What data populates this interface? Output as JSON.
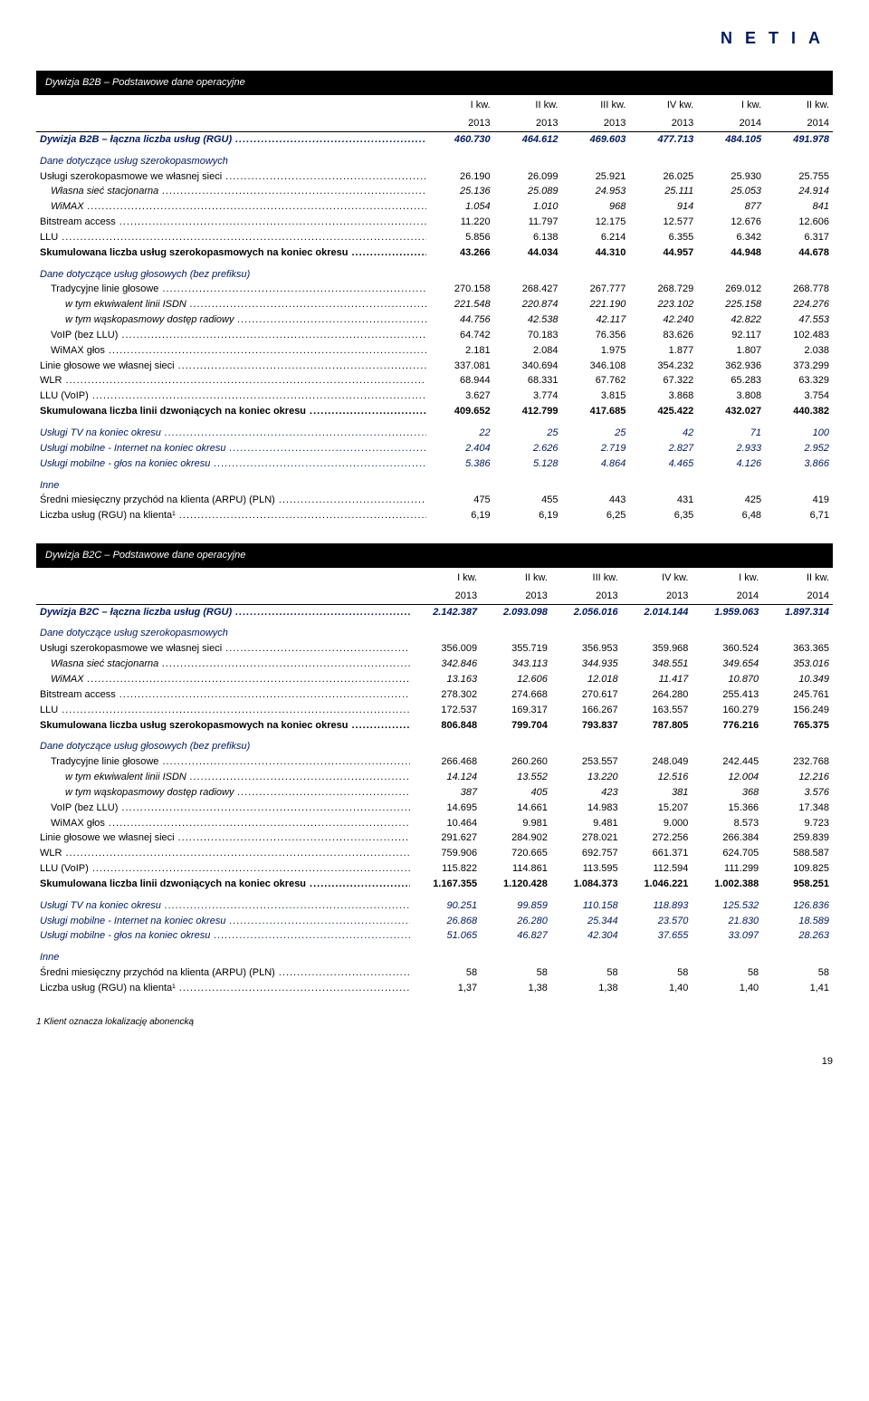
{
  "brand": "NETIA",
  "table_b2b": {
    "title": "Dywizja B2B – Podstawowe dane operacyjne",
    "col_top": [
      "I kw.",
      "II kw.",
      "III kw.",
      "IV kw.",
      "I kw.",
      "II kw."
    ],
    "col_year": [
      "2013",
      "2013",
      "2013",
      "2013",
      "2014",
      "2014"
    ],
    "rows": [
      {
        "label": "Dywizja B2B – łączna liczba usług (RGU)",
        "vals": [
          "460.730",
          "464.612",
          "469.603",
          "477.713",
          "484.105",
          "491.978"
        ],
        "cls": "blue-i bold rule-top"
      },
      {
        "label": "Dane dotyczące usług szerokopasmowych",
        "vals": [
          "",
          "",
          "",
          "",
          "",
          ""
        ],
        "cls": "blue-i section-gap",
        "nodots": true
      },
      {
        "label": "Usługi szerokopasmowe we własnej sieci",
        "vals": [
          "26.190",
          "26.099",
          "25.921",
          "26.025",
          "25.930",
          "25.755"
        ]
      },
      {
        "label": "Własna sieć stacjonarna",
        "vals": [
          "25.136",
          "25.089",
          "24.953",
          "25.111",
          "25.053",
          "24.914"
        ],
        "cls": "italic ind1"
      },
      {
        "label": "WiMAX",
        "vals": [
          "1.054",
          "1.010",
          "968",
          "914",
          "877",
          "841"
        ],
        "cls": "italic ind1"
      },
      {
        "label": "Bitstream access",
        "vals": [
          "11.220",
          "11.797",
          "12.175",
          "12.577",
          "12.676",
          "12.606"
        ]
      },
      {
        "label": "LLU",
        "vals": [
          "5.856",
          "6.138",
          "6.214",
          "6.355",
          "6.342",
          "6.317"
        ]
      },
      {
        "label": "Skumulowana liczba usług szerokopasmowych na koniec okresu",
        "vals": [
          "43.266",
          "44.034",
          "44.310",
          "44.957",
          "44.948",
          "44.678"
        ],
        "cls": "bold"
      },
      {
        "label": "Dane dotyczące usług głosowych (bez prefiksu)",
        "vals": [
          "",
          "",
          "",
          "",
          "",
          ""
        ],
        "cls": "blue-i section-gap",
        "nodots": true
      },
      {
        "label": "Tradycyjne linie głosowe",
        "vals": [
          "270.158",
          "268.427",
          "267.777",
          "268.729",
          "269.012",
          "268.778"
        ],
        "cls": "ind1"
      },
      {
        "label": "w tym ekwiwalent linii ISDN",
        "vals": [
          "221.548",
          "220.874",
          "221.190",
          "223.102",
          "225.158",
          "224.276"
        ],
        "cls": "italic ind2"
      },
      {
        "label": "w tym wąskopasmowy dostęp radiowy",
        "vals": [
          "44.756",
          "42.538",
          "42.117",
          "42.240",
          "42.822",
          "47.553"
        ],
        "cls": "italic ind2"
      },
      {
        "label": "VoIP (bez LLU)",
        "vals": [
          "64.742",
          "70.183",
          "76.356",
          "83.626",
          "92.117",
          "102.483"
        ],
        "cls": "ind1"
      },
      {
        "label": "WiMAX głos",
        "vals": [
          "2.181",
          "2.084",
          "1.975",
          "1.877",
          "1.807",
          "2.038"
        ],
        "cls": "ind1"
      },
      {
        "label": "Linie głosowe we własnej sieci",
        "vals": [
          "337.081",
          "340.694",
          "346.108",
          "354.232",
          "362.936",
          "373.299"
        ]
      },
      {
        "label": "WLR",
        "vals": [
          "68.944",
          "68.331",
          "67.762",
          "67.322",
          "65.283",
          "63.329"
        ]
      },
      {
        "label": "LLU (VoIP)",
        "vals": [
          "3.627",
          "3.774",
          "3.815",
          "3.868",
          "3.808",
          "3.754"
        ]
      },
      {
        "label": "Skumulowana liczba linii dzwoniących na koniec okresu",
        "vals": [
          "409.652",
          "412.799",
          "417.685",
          "425.422",
          "432.027",
          "440.382"
        ],
        "cls": "bold"
      },
      {
        "label": "Usługi TV na koniec okresu",
        "vals": [
          "22",
          "25",
          "25",
          "42",
          "71",
          "100"
        ],
        "cls": "blue-i section-gap"
      },
      {
        "label": "Usługi mobilne - Internet na koniec okresu",
        "vals": [
          "2.404",
          "2.626",
          "2.719",
          "2.827",
          "2.933",
          "2.952"
        ],
        "cls": "blue-i"
      },
      {
        "label": "Usługi mobilne - głos na koniec okresu",
        "vals": [
          "5.386",
          "5.128",
          "4.864",
          "4.465",
          "4.126",
          "3.866"
        ],
        "cls": "blue-i"
      },
      {
        "label": "Inne",
        "vals": [
          "",
          "",
          "",
          "",
          "",
          ""
        ],
        "cls": "blue-i section-gap",
        "nodots": true
      },
      {
        "label": "Średni miesięczny przychód na klienta (ARPU) (PLN)",
        "vals": [
          "475",
          "455",
          "443",
          "431",
          "425",
          "419"
        ]
      },
      {
        "label": "Liczba usług (RGU) na klienta¹",
        "vals": [
          "6,19",
          "6,19",
          "6,25",
          "6,35",
          "6,48",
          "6,71"
        ]
      }
    ]
  },
  "table_b2c": {
    "title": "Dywizja B2C – Podstawowe dane operacyjne",
    "col_top": [
      "I kw.",
      "II kw.",
      "III kw.",
      "IV kw.",
      "I kw.",
      "II kw."
    ],
    "col_year": [
      "2013",
      "2013",
      "2013",
      "2013",
      "2014",
      "2014"
    ],
    "rows": [
      {
        "label": "Dywizja B2C – łączna liczba usług (RGU)",
        "vals": [
          "2.142.387",
          "2.093.098",
          "2.056.016",
          "2.014.144",
          "1.959.063",
          "1.897.314"
        ],
        "cls": "blue-i bold rule-top"
      },
      {
        "label": "Dane dotyczące usług szerokopasmowych",
        "vals": [
          "",
          "",
          "",
          "",
          "",
          ""
        ],
        "cls": "blue-i section-gap",
        "nodots": true
      },
      {
        "label": "Usługi szerokopasmowe we własnej sieci",
        "vals": [
          "356.009",
          "355.719",
          "356.953",
          "359.968",
          "360.524",
          "363.365"
        ]
      },
      {
        "label": "Własna sieć stacjonarna",
        "vals": [
          "342.846",
          "343.113",
          "344.935",
          "348.551",
          "349.654",
          "353.016"
        ],
        "cls": "italic ind1"
      },
      {
        "label": "WiMAX",
        "vals": [
          "13.163",
          "12.606",
          "12.018",
          "11.417",
          "10.870",
          "10.349"
        ],
        "cls": "italic ind1"
      },
      {
        "label": "Bitstream access",
        "vals": [
          "278.302",
          "274.668",
          "270.617",
          "264.280",
          "255.413",
          "245.761"
        ]
      },
      {
        "label": "LLU",
        "vals": [
          "172.537",
          "169.317",
          "166.267",
          "163.557",
          "160.279",
          "156.249"
        ]
      },
      {
        "label": "Skumulowana liczba usług szerokopasmowych  na koniec okresu",
        "vals": [
          "806.848",
          "799.704",
          "793.837",
          "787.805",
          "776.216",
          "765.375"
        ],
        "cls": "bold"
      },
      {
        "label": "Dane dotyczące usług głosowych (bez prefiksu)",
        "vals": [
          "",
          "",
          "",
          "",
          "",
          ""
        ],
        "cls": "blue-i section-gap",
        "nodots": true
      },
      {
        "label": "Tradycyjne linie głosowe",
        "vals": [
          "266.468",
          "260.260",
          "253.557",
          "248.049",
          "242.445",
          "232.768"
        ],
        "cls": "ind1"
      },
      {
        "label": "w tym ekwiwalent linii ISDN",
        "vals": [
          "14.124",
          "13.552",
          "13.220",
          "12.516",
          "12.004",
          "12.216"
        ],
        "cls": "italic ind2"
      },
      {
        "label": "w tym wąskopasmowy dostęp radiowy",
        "vals": [
          "387",
          "405",
          "423",
          "381",
          "368",
          "3.576"
        ],
        "cls": "italic ind2"
      },
      {
        "label": "VoIP (bez LLU)",
        "vals": [
          "14.695",
          "14.661",
          "14.983",
          "15.207",
          "15.366",
          "17.348"
        ],
        "cls": "ind1"
      },
      {
        "label": "WiMAX głos",
        "vals": [
          "10.464",
          "9.981",
          "9.481",
          "9.000",
          "8.573",
          "9.723"
        ],
        "cls": "ind1"
      },
      {
        "label": "Linie głosowe we własnej sieci",
        "vals": [
          "291.627",
          "284.902",
          "278.021",
          "272.256",
          "266.384",
          "259.839"
        ]
      },
      {
        "label": "WLR",
        "vals": [
          "759.906",
          "720.665",
          "692.757",
          "661.371",
          "624.705",
          "588.587"
        ]
      },
      {
        "label": "LLU (VoIP)",
        "vals": [
          "115.822",
          "114.861",
          "113.595",
          "112.594",
          "111.299",
          "109.825"
        ]
      },
      {
        "label": "Skumulowana liczba linii dzwoniących na koniec okresu",
        "vals": [
          "1.167.355",
          "1.120.428",
          "1.084.373",
          "1.046.221",
          "1.002.388",
          "958.251"
        ],
        "cls": "bold"
      },
      {
        "label": "Usługi TV na koniec okresu",
        "vals": [
          "90.251",
          "99.859",
          "110.158",
          "118.893",
          "125.532",
          "126.836"
        ],
        "cls": "blue-i section-gap"
      },
      {
        "label": "Usługi mobilne - Internet na koniec okresu",
        "vals": [
          "26.868",
          "26.280",
          "25.344",
          "23.570",
          "21.830",
          "18.589"
        ],
        "cls": "blue-i"
      },
      {
        "label": "Usługi mobilne - głos na koniec okresu",
        "vals": [
          "51.065",
          "46.827",
          "42.304",
          "37.655",
          "33.097",
          "28.263"
        ],
        "cls": "blue-i"
      },
      {
        "label": "Inne",
        "vals": [
          "",
          "",
          "",
          "",
          "",
          ""
        ],
        "cls": "blue-i section-gap",
        "nodots": true
      },
      {
        "label": "Średni miesięczny przychód na klienta (ARPU) (PLN)",
        "vals": [
          "58",
          "58",
          "58",
          "58",
          "58",
          "58"
        ]
      },
      {
        "label": "Liczba usług (RGU) na klienta¹",
        "vals": [
          "1,37",
          "1,38",
          "1,38",
          "1,40",
          "1,40",
          "1,41"
        ]
      }
    ]
  },
  "footnote": "1 Klient oznacza lokalizację abonencką",
  "page_number": "19"
}
